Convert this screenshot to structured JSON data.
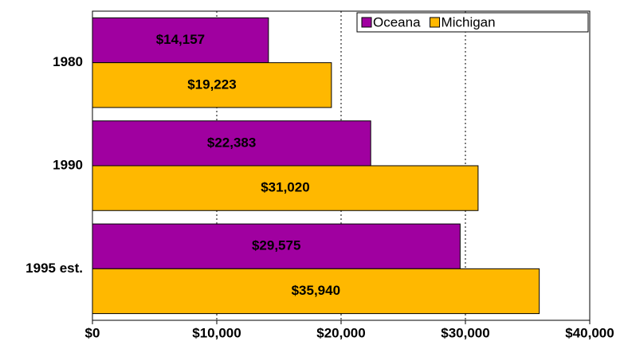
{
  "chart_data": {
    "type": "hbar",
    "categories": [
      "1980",
      "1990",
      "1995 est."
    ],
    "series": [
      {
        "name": "Oceana",
        "color": "#a000a0",
        "values": [
          14157,
          22383,
          29575
        ],
        "value_labels": [
          "$14,157",
          "$22,383",
          "$29,575"
        ]
      },
      {
        "name": "Michigan",
        "color": "#ffb800",
        "values": [
          19223,
          31020,
          35940
        ],
        "value_labels": [
          "$19,223",
          "$31,020",
          "$35,940"
        ]
      }
    ],
    "xlim": [
      0,
      40000
    ],
    "xticks": [
      {
        "value": 0,
        "label": "$0"
      },
      {
        "value": 10000,
        "label": "$10,000"
      },
      {
        "value": 20000,
        "label": "$20,000"
      },
      {
        "value": 30000,
        "label": "$30,000"
      },
      {
        "value": 40000,
        "label": "$40,000"
      }
    ],
    "grid": true,
    "legend": "top-right"
  }
}
